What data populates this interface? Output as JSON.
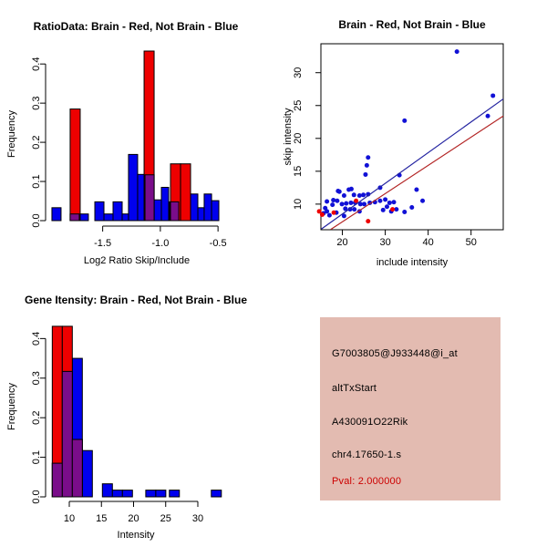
{
  "chart_data": [
    {
      "type": "bar",
      "title": "RatioData: Brain - Red, Not Brain - Blue",
      "xlabel": "Log2 Ratio Skip/Include",
      "ylabel": "Frequency",
      "xlim": [
        -1.995,
        -0.43
      ],
      "ylim": [
        0,
        0.44
      ],
      "grid": false,
      "legend": "none",
      "xtick_vals": [
        -1.5,
        -1.0,
        -0.5
      ],
      "xtick_labels": [
        "-1.5",
        "-1.0",
        "-0.5"
      ],
      "ytick_vals": [
        0,
        0.1,
        0.2,
        0.3,
        0.4
      ],
      "ytick_labels": [
        "0.0",
        "0.1",
        "0.2",
        "0.3",
        "0.4"
      ],
      "series": [
        {
          "name": "not-brain",
          "color": "#0000ee",
          "bars": [
            [
              -1.94,
              -1.861,
              0.033
            ],
            [
              -1.782,
              -1.703,
              0.017
            ],
            [
              -1.703,
              -1.624,
              0.017
            ],
            [
              -1.568,
              -1.489,
              0.048
            ],
            [
              -1.489,
              -1.41,
              0.017
            ],
            [
              -1.41,
              -1.331,
              0.048
            ],
            [
              -1.331,
              -1.276,
              0.017
            ],
            [
              -1.276,
              -1.197,
              0.169
            ],
            [
              -1.197,
              -1.133,
              0.118
            ],
            [
              -1.133,
              -1.054,
              0.117
            ],
            [
              -1.054,
              -0.991,
              0.053
            ],
            [
              -0.991,
              -0.928,
              0.085
            ],
            [
              -0.92,
              -0.841,
              0.048
            ],
            [
              -0.738,
              -0.675,
              0.068
            ],
            [
              -0.675,
              -0.62,
              0.033
            ],
            [
              -0.62,
              -0.556,
              0.068
            ],
            [
              -0.556,
              -0.493,
              0.051
            ]
          ]
        },
        {
          "name": "brain",
          "color": "#ee0000",
          "bars": [
            [
              -1.782,
              -1.695,
              0.285
            ],
            [
              -1.141,
              -1.054,
              0.433
            ],
            [
              -0.912,
              -0.825,
              0.145
            ],
            [
              -0.825,
              -0.738,
              0.145
            ]
          ]
        },
        {
          "name": "overlap",
          "color": "#7a0d8a",
          "bars": [
            [
              -1.782,
              -1.703,
              0.017
            ],
            [
              -1.133,
              -1.054,
              0.117
            ],
            [
              -0.912,
              -0.841,
              0.048
            ]
          ]
        }
      ]
    },
    {
      "type": "scatter",
      "title": "Brain - Red, Not Brain - Blue",
      "xlabel": "include intensity",
      "ylabel": "skip intensity",
      "xlim": [
        15.0,
        57.5
      ],
      "ylim": [
        6.1,
        34.4
      ],
      "grid": false,
      "legend": "none",
      "xtick_vals": [
        20,
        30,
        40,
        50
      ],
      "xtick_labels": [
        "20",
        "30",
        "40",
        "50"
      ],
      "ytick_vals": [
        10,
        15,
        20,
        25,
        30
      ],
      "ytick_labels": [
        "10",
        "15",
        "20",
        "25",
        "30"
      ],
      "series": [
        {
          "name": "not-brain",
          "color": "#1111d6",
          "points": [
            [
              46.7,
              33.2
            ],
            [
              55.1,
              26.5
            ],
            [
              53.9,
              23.4
            ],
            [
              34.5,
              22.7
            ],
            [
              26.0,
              17.1
            ],
            [
              25.7,
              15.9
            ],
            [
              25.4,
              14.5
            ],
            [
              33.3,
              14.4
            ],
            [
              28.8,
              12.5
            ],
            [
              22.1,
              12.3
            ],
            [
              37.3,
              12.2
            ],
            [
              19.0,
              12.0
            ],
            [
              21.5,
              12.2
            ],
            [
              19.3,
              11.9
            ],
            [
              20.4,
              11.3
            ],
            [
              22.7,
              11.4
            ],
            [
              24.0,
              11.3
            ],
            [
              24.9,
              11.4
            ],
            [
              26.0,
              11.5
            ],
            [
              17.9,
              10.6
            ],
            [
              18.8,
              10.5
            ],
            [
              16.4,
              10.4
            ],
            [
              17.7,
              9.9
            ],
            [
              19.9,
              10.0
            ],
            [
              20.9,
              10.1
            ],
            [
              22.0,
              10.2
            ],
            [
              23.0,
              10.2
            ],
            [
              24.2,
              10.0
            ],
            [
              25.1,
              10.0
            ],
            [
              26.4,
              10.2
            ],
            [
              27.6,
              10.3
            ],
            [
              28.8,
              10.5
            ],
            [
              30.0,
              10.7
            ],
            [
              31.0,
              10.2
            ],
            [
              32.0,
              10.3
            ],
            [
              30.4,
              9.6
            ],
            [
              29.5,
              9.1
            ],
            [
              31.4,
              8.9
            ],
            [
              32.6,
              9.2
            ],
            [
              34.5,
              8.8
            ],
            [
              36.2,
              9.5
            ],
            [
              38.7,
              10.5
            ],
            [
              16.0,
              9.4
            ],
            [
              16.4,
              8.9
            ],
            [
              17.0,
              8.3
            ],
            [
              18.6,
              8.7
            ],
            [
              20.7,
              9.3
            ],
            [
              21.8,
              9.2
            ],
            [
              22.8,
              9.2
            ],
            [
              24.0,
              8.9
            ],
            [
              20.4,
              8.2
            ],
            [
              15.6,
              8.6
            ]
          ]
        },
        {
          "name": "brain",
          "color": "#ee0000",
          "points": [
            [
              14.6,
              8.9
            ],
            [
              15.3,
              8.4
            ],
            [
              18.0,
              8.7
            ],
            [
              23.2,
              10.5
            ],
            [
              26.0,
              7.4
            ],
            [
              31.7,
              9.2
            ]
          ]
        }
      ],
      "lines": [
        {
          "name": "not-brain-fit",
          "color": "#2222a0",
          "x1": 15.1,
          "y1": 6.2,
          "x2": 57.5,
          "y2": 26.0
        },
        {
          "name": "brain-fit",
          "color": "#b22222",
          "x1": 17.3,
          "y1": 6.15,
          "x2": 57.5,
          "y2": 23.4
        }
      ]
    },
    {
      "type": "bar",
      "title": "Gene Itensity: Brain - Red, Not Brain - Blue",
      "xlabel": "Intensity",
      "ylabel": "Frequency",
      "xlim": [
        6.31,
        34.4
      ],
      "ylim": [
        0,
        0.44
      ],
      "grid": false,
      "legend": "none",
      "xtick_vals": [
        10,
        15,
        20,
        25,
        30
      ],
      "xtick_labels": [
        "10",
        "15",
        "20",
        "25",
        "30"
      ],
      "ytick_vals": [
        0,
        0.1,
        0.2,
        0.3,
        0.4
      ],
      "ytick_labels": [
        "0.0",
        "0.1",
        "0.2",
        "0.3",
        "0.4"
      ],
      "series": [
        {
          "name": "not-brain",
          "color": "#0000ee",
          "bars": [
            [
              7.35,
              8.91,
              0.085
            ],
            [
              8.91,
              10.47,
              0.317
            ],
            [
              10.47,
              12.03,
              0.35
            ],
            [
              12.03,
              13.59,
              0.117
            ],
            [
              15.15,
              16.71,
              0.033
            ],
            [
              16.71,
              18.27,
              0.017
            ],
            [
              18.27,
              19.83,
              0.017
            ],
            [
              21.9,
              23.46,
              0.017
            ],
            [
              23.46,
              25.02,
              0.017
            ],
            [
              25.57,
              27.13,
              0.017
            ],
            [
              32.1,
              33.66,
              0.017
            ]
          ]
        },
        {
          "name": "brain",
          "color": "#ee0000",
          "bars": [
            [
              7.35,
              8.91,
              0.431
            ],
            [
              8.91,
              10.47,
              0.431
            ],
            [
              10.47,
              12.03,
              0.145
            ]
          ]
        },
        {
          "name": "overlap",
          "color": "#7a0d8a",
          "bars": [
            [
              7.35,
              8.91,
              0.085
            ],
            [
              8.91,
              10.47,
              0.317
            ],
            [
              10.47,
              12.03,
              0.145
            ]
          ]
        }
      ]
    }
  ],
  "info_panel": {
    "bg_color": "#e3bbb1",
    "probe_id": "G7003805@J933448@i_at",
    "event_type": "altTxStart",
    "gene_symbol": "A430091O22Rik",
    "location": "chr4.17650-1.s",
    "pval_label": "Pval: 2.000000",
    "pval_color": "#cc0000",
    "text_color": "#000000"
  }
}
